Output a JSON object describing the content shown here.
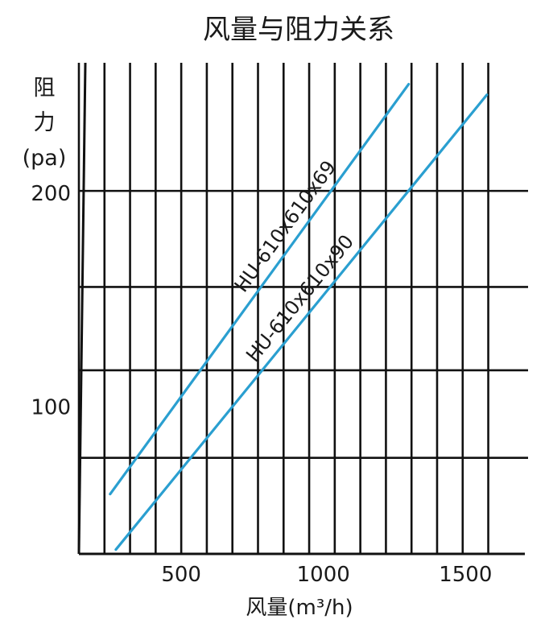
{
  "chart_data": {
    "type": "line",
    "title": "风量与阻力关系",
    "xlabel": "风量(m³/h)",
    "ylabel_lines": [
      "阻",
      "力",
      "(pa)"
    ],
    "x_ticks": [
      {
        "value": 500,
        "label": "500"
      },
      {
        "value": 1000,
        "label": "1000"
      },
      {
        "value": 1500,
        "label": "1500"
      }
    ],
    "y_ticks": [
      {
        "value": 100,
        "label": "100"
      },
      {
        "value": 200,
        "label": "200"
      }
    ],
    "xlim": [
      140,
      1720
    ],
    "ylim": [
      30,
      260
    ],
    "vertical_grid_x": [
      140,
      230,
      320,
      410,
      500,
      590,
      680,
      770,
      860,
      950,
      1040,
      1130,
      1220,
      1310,
      1400,
      1490,
      1580
    ],
    "horizontal_grid_y": [
      75,
      116,
      155,
      200
    ],
    "grid": true,
    "line_color": "#2a9fd0",
    "series": [
      {
        "name": "HU-610x610x69",
        "points": [
          [
            250,
            58
          ],
          [
            1300,
            250
          ]
        ]
      },
      {
        "name": "HU-610x610x90",
        "points": [
          [
            270,
            32
          ],
          [
            1575,
            245
          ]
        ]
      }
    ]
  }
}
